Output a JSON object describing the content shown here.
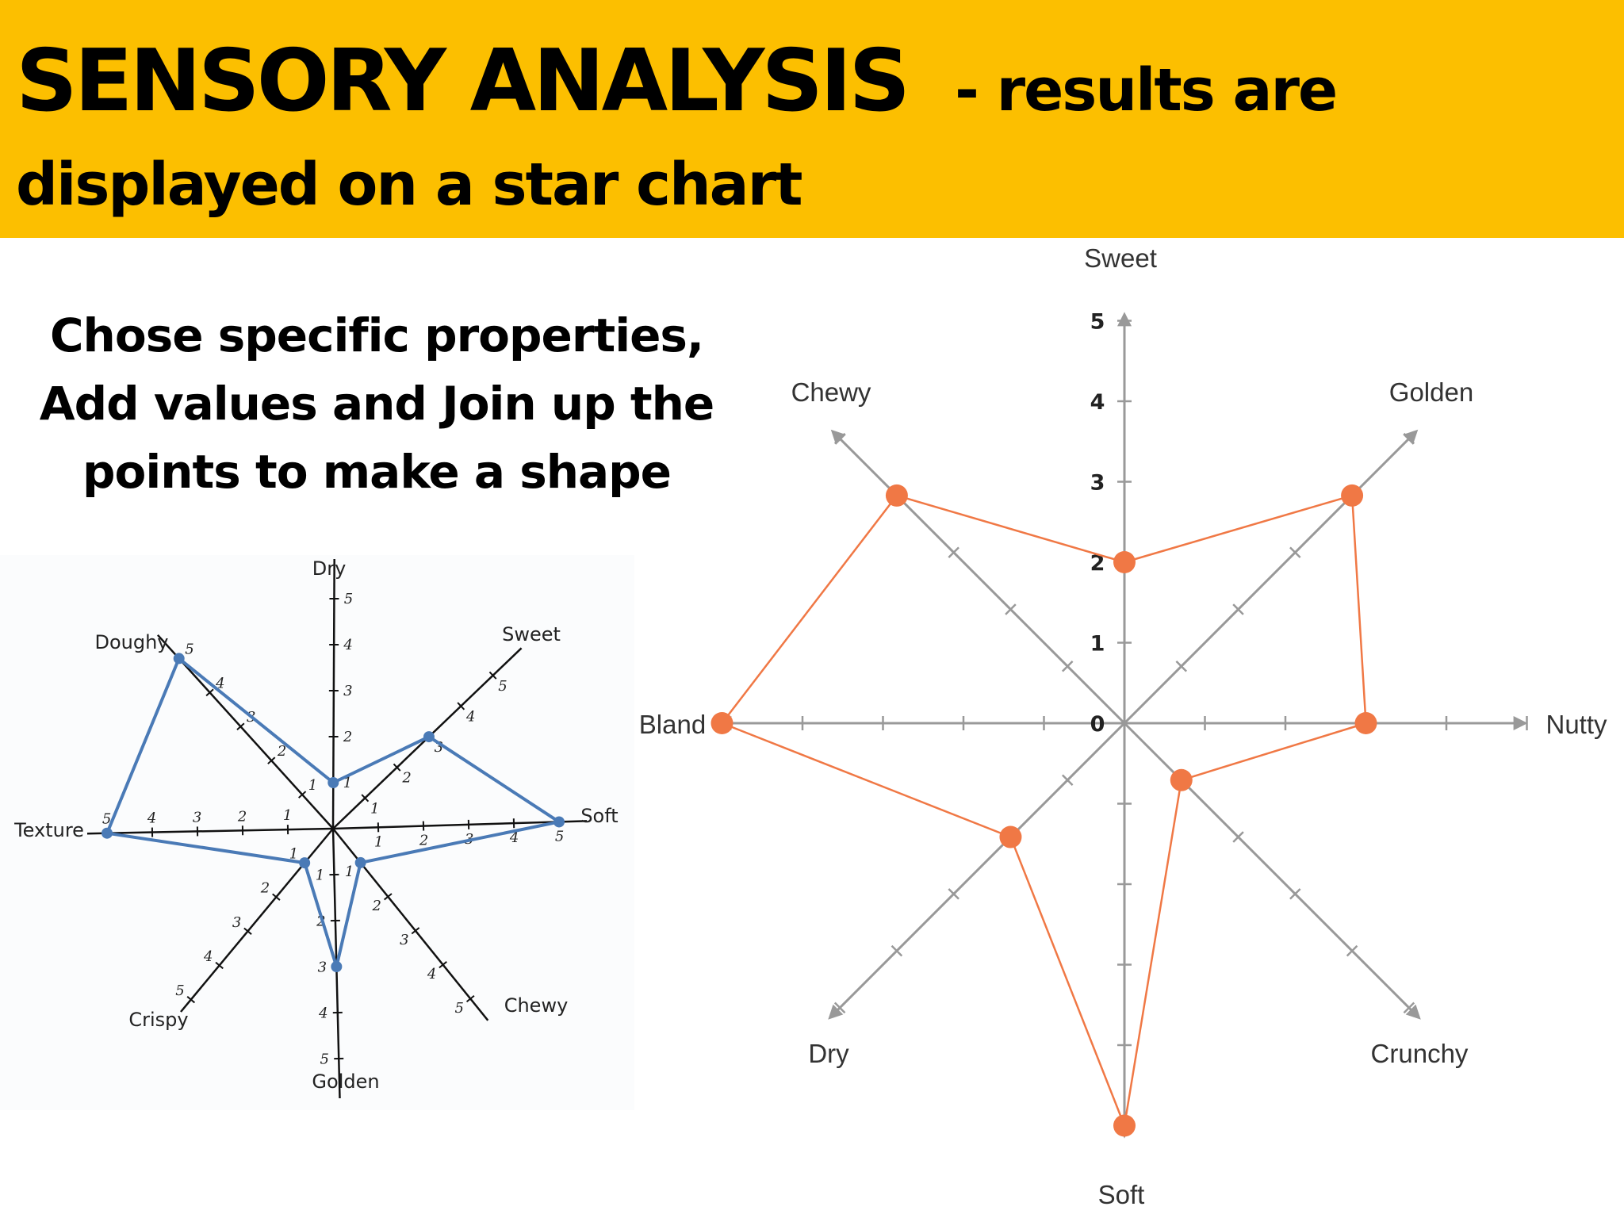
{
  "header": {
    "title_main": "SENSORY ANALYSIS",
    "title_sub": "- results are",
    "title_line2": "displayed on a star chart",
    "background_color": "#fcbf00"
  },
  "instructions": {
    "line1": "Chose specific properties,",
    "line2": "Add values and Join up the",
    "line3": "points to make a shape"
  },
  "chart_data": [
    {
      "type": "radar",
      "style": "hand-drawn",
      "line_color": "#4a7ab6",
      "axes": [
        {
          "label": "Dry",
          "value": 1,
          "ticks": [
            "1",
            "2",
            "3",
            "4",
            "5"
          ]
        },
        {
          "label": "Sweet",
          "value": 3,
          "ticks": [
            "1",
            "2",
            "3",
            "4",
            "5"
          ]
        },
        {
          "label": "Soft",
          "value": 5,
          "ticks": [
            "1",
            "2",
            "3",
            "4",
            "5"
          ]
        },
        {
          "label": "Chewy",
          "value": 1,
          "ticks": [
            "1",
            "2",
            "3",
            "4",
            "5"
          ]
        },
        {
          "label": "Golden",
          "value": 3,
          "ticks": [
            "1",
            "2",
            "3",
            "4",
            "5"
          ]
        },
        {
          "label": "Crispy",
          "value": 1,
          "ticks": [
            "1",
            "2",
            "3",
            "4",
            "5"
          ]
        },
        {
          "label": "Texture",
          "value": 5,
          "ticks": [
            "1",
            "2",
            "3",
            "4",
            "5"
          ]
        },
        {
          "label": "Doughy",
          "value": 5,
          "ticks": [
            "1",
            "2",
            "3",
            "4",
            "5"
          ]
        }
      ],
      "range": [
        0,
        5
      ]
    },
    {
      "type": "radar",
      "style": "digital",
      "line_color": "#f07845",
      "axis_color": "#999999",
      "axes": [
        {
          "label": "Sweet",
          "value": 2
        },
        {
          "label": "Golden",
          "value": 4
        },
        {
          "label": "Nutty",
          "value": 3
        },
        {
          "label": "Crunchy",
          "value": 1
        },
        {
          "label": "Soft",
          "value": 5
        },
        {
          "label": "Dry",
          "value": 2
        },
        {
          "label": "Bland",
          "value": 5
        },
        {
          "label": "Chewy",
          "value": 4
        }
      ],
      "scale_labels": [
        "0",
        "1",
        "2",
        "3",
        "4",
        "5"
      ],
      "range": [
        0,
        5
      ]
    }
  ]
}
